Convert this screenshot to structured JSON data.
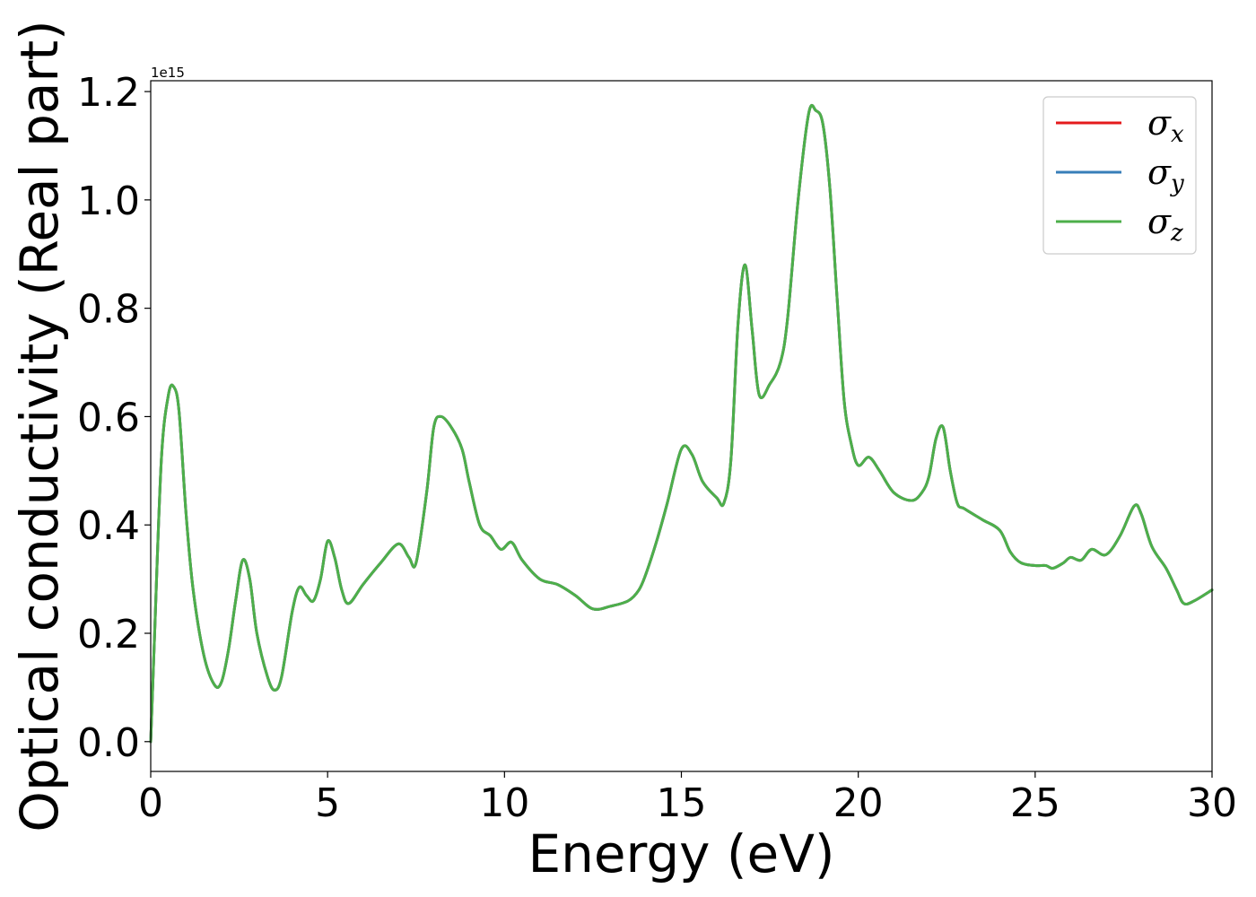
{
  "chart_data": {
    "type": "line",
    "xlabel": "Energy (eV)",
    "ylabel": "Optical conductivity (Real part)",
    "y_offset_label": "1e15",
    "xlim": [
      0,
      30
    ],
    "ylim": [
      -0.055,
      1.22
    ],
    "x_ticks": [
      0,
      5,
      10,
      15,
      20,
      25,
      30
    ],
    "y_ticks": [
      0.0,
      0.2,
      0.4,
      0.6,
      0.8,
      1.0,
      1.2
    ],
    "x_tick_labels": [
      "0",
      "5",
      "10",
      "15",
      "20",
      "25",
      "30"
    ],
    "y_tick_labels": [
      "0.0",
      "0.2",
      "0.4",
      "0.6",
      "0.8",
      "1.0",
      "1.2"
    ],
    "grid": false,
    "legend_position": "top-right",
    "x": [
      0,
      0.1,
      0.3,
      0.5,
      0.65,
      0.8,
      1.0,
      1.2,
      1.5,
      1.8,
      2.0,
      2.2,
      2.4,
      2.6,
      2.8,
      3.0,
      3.3,
      3.5,
      3.7,
      4.0,
      4.2,
      4.4,
      4.6,
      4.8,
      5.0,
      5.2,
      5.4,
      5.6,
      6.0,
      6.5,
      7.0,
      7.3,
      7.5,
      7.8,
      8.0,
      8.2,
      8.5,
      8.8,
      9.0,
      9.3,
      9.6,
      9.9,
      10.2,
      10.5,
      11.0,
      11.5,
      12.0,
      12.5,
      13.0,
      13.5,
      13.8,
      14.0,
      14.3,
      14.6,
      15.0,
      15.3,
      15.6,
      16.0,
      16.2,
      16.4,
      16.6,
      16.8,
      17.0,
      17.2,
      17.5,
      17.8,
      18.0,
      18.3,
      18.6,
      18.8,
      19.0,
      19.2,
      19.4,
      19.6,
      19.8,
      20.0,
      20.3,
      20.6,
      21.0,
      21.5,
      21.8,
      22.0,
      22.2,
      22.4,
      22.6,
      22.8,
      23.0,
      23.5,
      24.0,
      24.3,
      24.6,
      25.0,
      25.3,
      25.5,
      25.8,
      26.0,
      26.3,
      26.6,
      27.0,
      27.4,
      27.8,
      28.0,
      28.3,
      28.7,
      29.0,
      29.2,
      29.5,
      30.0
    ],
    "series": [
      {
        "name": "σ",
        "subscript": "x",
        "color": "#e41a1c",
        "values": [
          0.0,
          0.18,
          0.52,
          0.64,
          0.655,
          0.61,
          0.42,
          0.28,
          0.16,
          0.105,
          0.11,
          0.17,
          0.26,
          0.335,
          0.3,
          0.2,
          0.12,
          0.095,
          0.12,
          0.24,
          0.285,
          0.27,
          0.26,
          0.3,
          0.37,
          0.34,
          0.28,
          0.255,
          0.29,
          0.33,
          0.365,
          0.34,
          0.33,
          0.46,
          0.58,
          0.6,
          0.58,
          0.54,
          0.48,
          0.4,
          0.38,
          0.355,
          0.368,
          0.335,
          0.3,
          0.29,
          0.27,
          0.245,
          0.25,
          0.26,
          0.28,
          0.31,
          0.37,
          0.44,
          0.54,
          0.53,
          0.48,
          0.45,
          0.44,
          0.52,
          0.77,
          0.88,
          0.76,
          0.64,
          0.66,
          0.7,
          0.78,
          1.0,
          1.16,
          1.165,
          1.14,
          1.02,
          0.82,
          0.63,
          0.55,
          0.51,
          0.525,
          0.5,
          0.46,
          0.445,
          0.46,
          0.49,
          0.56,
          0.58,
          0.5,
          0.44,
          0.43,
          0.41,
          0.39,
          0.35,
          0.33,
          0.325,
          0.325,
          0.32,
          0.33,
          0.34,
          0.335,
          0.355,
          0.345,
          0.38,
          0.435,
          0.42,
          0.36,
          0.32,
          0.28,
          0.255,
          0.26,
          0.28
        ]
      },
      {
        "name": "σ",
        "subscript": "y",
        "color": "#377eb8",
        "values": [
          0.0,
          0.18,
          0.52,
          0.64,
          0.655,
          0.61,
          0.42,
          0.28,
          0.16,
          0.105,
          0.11,
          0.17,
          0.26,
          0.335,
          0.3,
          0.2,
          0.12,
          0.095,
          0.12,
          0.24,
          0.285,
          0.27,
          0.26,
          0.3,
          0.37,
          0.34,
          0.28,
          0.255,
          0.29,
          0.33,
          0.365,
          0.34,
          0.33,
          0.46,
          0.58,
          0.6,
          0.58,
          0.54,
          0.48,
          0.4,
          0.38,
          0.355,
          0.368,
          0.335,
          0.3,
          0.29,
          0.27,
          0.245,
          0.25,
          0.26,
          0.28,
          0.31,
          0.37,
          0.44,
          0.54,
          0.53,
          0.48,
          0.45,
          0.44,
          0.52,
          0.77,
          0.88,
          0.76,
          0.64,
          0.66,
          0.7,
          0.78,
          1.0,
          1.16,
          1.165,
          1.14,
          1.02,
          0.82,
          0.63,
          0.55,
          0.51,
          0.525,
          0.5,
          0.46,
          0.445,
          0.46,
          0.49,
          0.56,
          0.58,
          0.5,
          0.44,
          0.43,
          0.41,
          0.39,
          0.35,
          0.33,
          0.325,
          0.325,
          0.32,
          0.33,
          0.34,
          0.335,
          0.355,
          0.345,
          0.38,
          0.435,
          0.42,
          0.36,
          0.32,
          0.28,
          0.255,
          0.26,
          0.28
        ]
      },
      {
        "name": "σ",
        "subscript": "z",
        "color": "#4daf4a",
        "values": [
          0.0,
          0.18,
          0.52,
          0.64,
          0.655,
          0.61,
          0.42,
          0.28,
          0.16,
          0.105,
          0.11,
          0.17,
          0.26,
          0.335,
          0.3,
          0.2,
          0.12,
          0.095,
          0.12,
          0.24,
          0.285,
          0.27,
          0.26,
          0.3,
          0.37,
          0.34,
          0.28,
          0.255,
          0.29,
          0.33,
          0.365,
          0.34,
          0.33,
          0.46,
          0.58,
          0.6,
          0.58,
          0.54,
          0.48,
          0.4,
          0.38,
          0.355,
          0.368,
          0.335,
          0.3,
          0.29,
          0.27,
          0.245,
          0.25,
          0.26,
          0.28,
          0.31,
          0.37,
          0.44,
          0.54,
          0.53,
          0.48,
          0.45,
          0.44,
          0.52,
          0.77,
          0.88,
          0.76,
          0.64,
          0.66,
          0.7,
          0.78,
          1.0,
          1.16,
          1.165,
          1.14,
          1.02,
          0.82,
          0.63,
          0.55,
          0.51,
          0.525,
          0.5,
          0.46,
          0.445,
          0.46,
          0.49,
          0.56,
          0.58,
          0.5,
          0.44,
          0.43,
          0.41,
          0.39,
          0.35,
          0.33,
          0.325,
          0.325,
          0.32,
          0.33,
          0.34,
          0.335,
          0.355,
          0.345,
          0.38,
          0.435,
          0.42,
          0.36,
          0.32,
          0.28,
          0.255,
          0.26,
          0.28
        ]
      }
    ]
  }
}
